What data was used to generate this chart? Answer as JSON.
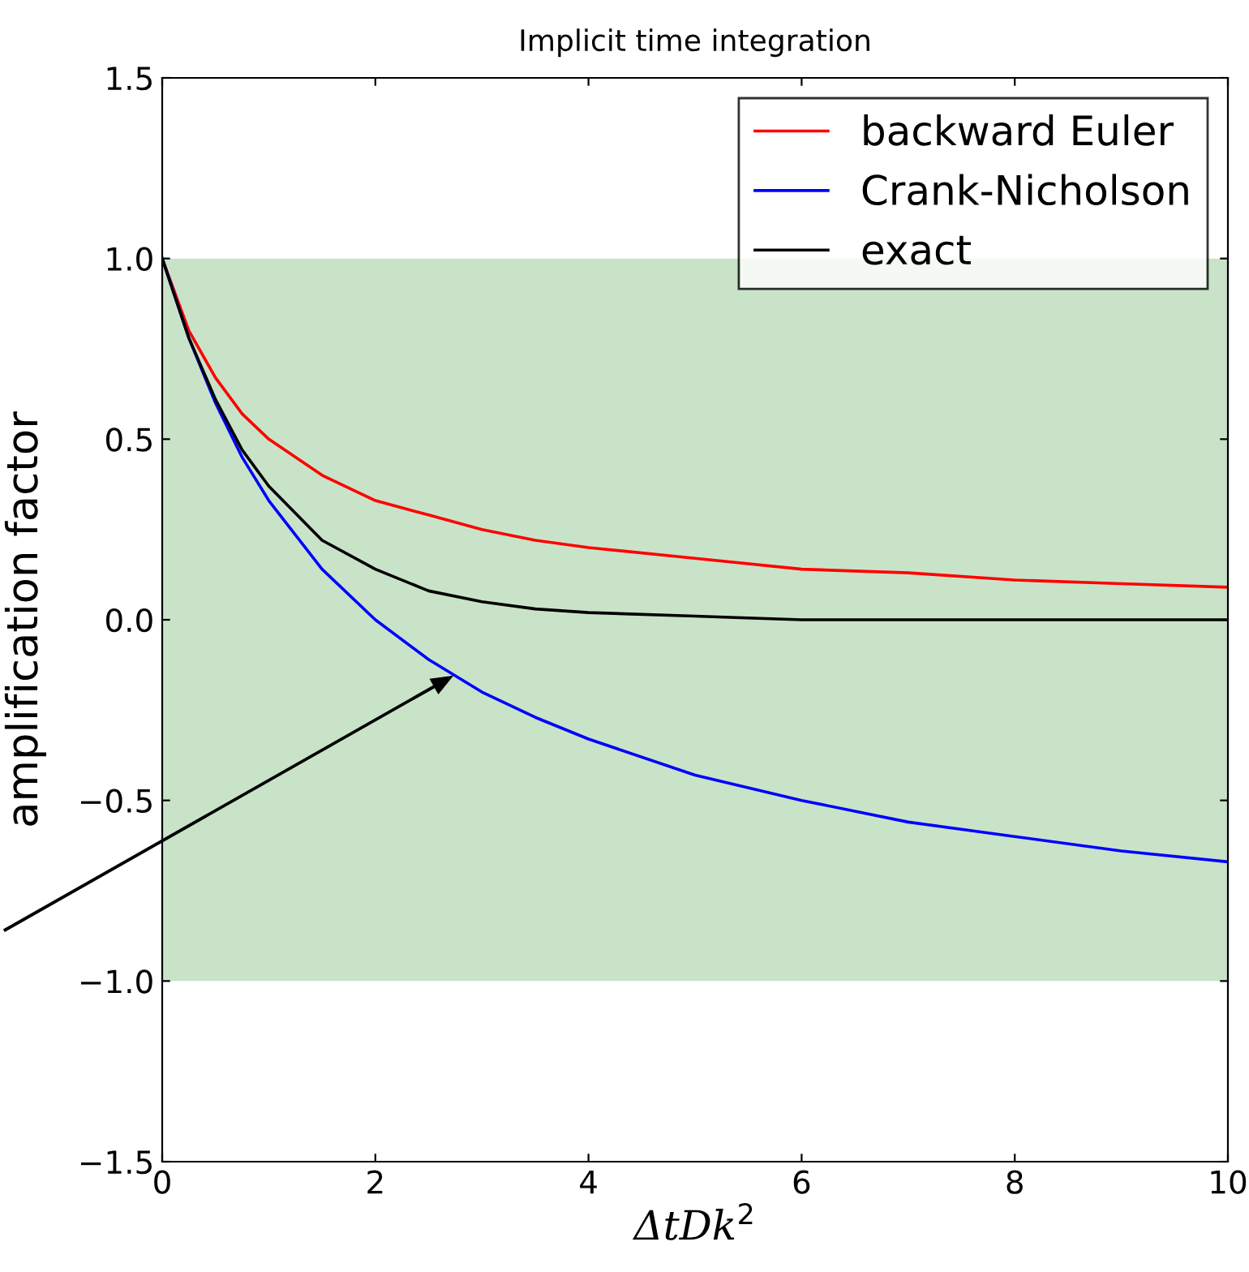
{
  "chart_data": {
    "type": "line",
    "title": "Implicit time integration",
    "xlabel": "ΔtDk$^{2}$",
    "ylabel": "amplification factor",
    "x": [
      0,
      0.25,
      0.5,
      0.75,
      1,
      1.5,
      2,
      2.5,
      3,
      3.5,
      4,
      5,
      6,
      7,
      8,
      9,
      10
    ],
    "series": [
      {
        "name": "backward Euler",
        "color": "#ff0000",
        "values": [
          1,
          0.8,
          0.67,
          0.57,
          0.5,
          0.4,
          0.33,
          0.29,
          0.25,
          0.22,
          0.2,
          0.17,
          0.14,
          0.13,
          0.11,
          0.1,
          0.09
        ]
      },
      {
        "name": "Crank-Nicholson",
        "color": "#0000ff",
        "values": [
          1,
          0.78,
          0.6,
          0.45,
          0.33,
          0.14,
          0,
          -0.11,
          -0.2,
          -0.27,
          -0.33,
          -0.43,
          -0.5,
          -0.56,
          -0.6,
          -0.64,
          -0.67
        ]
      },
      {
        "name": "exact",
        "color": "#000000",
        "values": [
          1,
          0.78,
          0.61,
          0.47,
          0.37,
          0.22,
          0.14,
          0.08,
          0.05,
          0.03,
          0.02,
          0.01,
          0,
          0,
          0,
          0,
          0
        ]
      }
    ],
    "bands": [
      {
        "axis": "y",
        "from": -1,
        "to": 1,
        "color": "#c9e3c9"
      }
    ],
    "xlim": [
      0,
      10
    ],
    "xticks": [
      0,
      2,
      4,
      6,
      8,
      10
    ],
    "ylim": [
      -1.5,
      1.5
    ],
    "yticks": [
      {
        "value": -1.5,
        "label": "−1.5"
      },
      {
        "value": -1,
        "label": "−1.0"
      },
      {
        "value": -0.5,
        "label": "−0.5"
      },
      {
        "value": 0,
        "label": "0.0"
      },
      {
        "value": 0.5,
        "label": "0.5"
      },
      {
        "value": 1,
        "label": "1.0"
      },
      {
        "value": 1.5,
        "label": "1.5"
      }
    ],
    "legend": "top right",
    "grid": false,
    "marker": "none",
    "line_style": "solid"
  }
}
